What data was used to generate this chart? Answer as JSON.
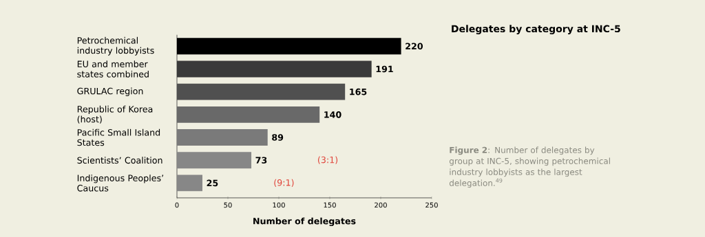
{
  "chart_data": {
    "type": "bar",
    "orientation": "horizontal",
    "title": "Delegates by category at INC-5",
    "xlabel": "Number of delegates",
    "categories": [
      "Petrochemical industry lobbyists",
      "EU and member states combined",
      "GRULAC region",
      "Republic of Korea (host)",
      "Pacific Small Island States",
      "Scientists’ Coalition",
      "Indigenous Peoples’ Caucus"
    ],
    "values": [
      220,
      191,
      165,
      140,
      89,
      73,
      25
    ],
    "colors": [
      "#000000",
      "#3a3a3a",
      "#505050",
      "#696969",
      "#7a7a7a",
      "#878787",
      "#878787"
    ],
    "xlim": [
      0,
      250
    ],
    "xticks": [
      0,
      50,
      100,
      150,
      200,
      250
    ],
    "data_labels": true,
    "grid": false,
    "annotations": [
      "(3:1)",
      "(9:1)",
      "**Figure 2**: Number of delegates by group at INC-5, showing petrochemical industry lobbyists as the largest delegation.$^{49}$"
    ]
  }
}
